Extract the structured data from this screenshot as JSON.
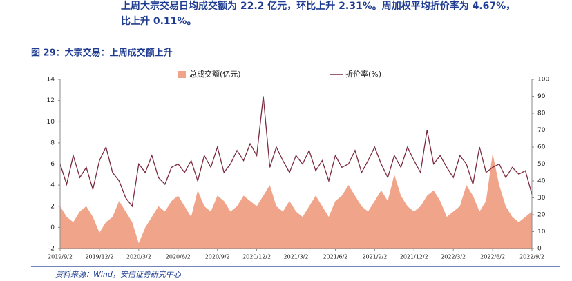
{
  "header_text": [
    "上周大宗交易日均成交额为 22.2 亿元，环比上升 2.31%。周加权平均折价率为 4.67%，",
    "比上升 0.11%。"
  ],
  "chart_data": {
    "type": "area-line",
    "title": "图 29：大宗交易：上周成交额上升",
    "source": "资料来源：Wind，安信证券研究中心",
    "categories": [
      "2019/9/2",
      null,
      null,
      null,
      null,
      null,
      "2019/12/2",
      null,
      null,
      null,
      null,
      null,
      "2020/3/2",
      null,
      null,
      null,
      null,
      null,
      "2020/6/2",
      null,
      null,
      null,
      null,
      null,
      "2020/9/2",
      null,
      null,
      null,
      null,
      null,
      "2020/12/2",
      null,
      null,
      null,
      null,
      null,
      "2021/3/2",
      null,
      null,
      null,
      null,
      null,
      "2021/6/2",
      null,
      null,
      null,
      null,
      null,
      "2021/9/2",
      null,
      null,
      null,
      null,
      null,
      "2021/12/2",
      null,
      null,
      null,
      null,
      null,
      "2022/3/2",
      null,
      null,
      null,
      null,
      null,
      "2022/6/2",
      null,
      null,
      null,
      null,
      null,
      "2022/9/2"
    ],
    "series": [
      {
        "name": "总成交额(亿元)",
        "color": "#f0a48a",
        "kind": "area",
        "values": [
          2,
          1,
          0.5,
          1.5,
          2,
          1,
          -0.5,
          0.5,
          1,
          2.5,
          1.5,
          0.5,
          -1.5,
          0,
          1,
          2,
          1.5,
          2.5,
          3,
          2,
          1,
          3.5,
          2,
          1.5,
          3,
          2.5,
          1.5,
          2,
          3,
          2.5,
          2,
          3,
          4,
          2,
          1.5,
          2.5,
          1.5,
          1,
          2,
          3,
          2,
          1,
          2.5,
          3,
          4,
          3,
          2,
          1.5,
          2.5,
          3.5,
          2.5,
          5,
          3,
          2,
          1.5,
          2,
          3,
          3.5,
          2.5,
          1,
          1.5,
          2,
          4,
          3,
          1.5,
          2.5,
          7,
          4,
          2,
          1,
          0.5,
          1,
          1.5
        ]
      },
      {
        "name": "折价率(%)",
        "color": "#7b2a3f",
        "kind": "line",
        "axis": "y2",
        "values": [
          50,
          38,
          55,
          42,
          48,
          35,
          52,
          60,
          45,
          40,
          30,
          25,
          50,
          45,
          55,
          42,
          38,
          48,
          50,
          45,
          52,
          40,
          55,
          48,
          60,
          45,
          50,
          58,
          52,
          62,
          55,
          90,
          48,
          60,
          52,
          45,
          55,
          50,
          58,
          46,
          52,
          40,
          55,
          48,
          50,
          58,
          45,
          52,
          60,
          50,
          42,
          55,
          48,
          60,
          52,
          45,
          70,
          50,
          55,
          48,
          42,
          55,
          50,
          38,
          60,
          45,
          48,
          50,
          42,
          48,
          44,
          46,
          32
        ]
      }
    ],
    "ylim": [
      -2,
      14
    ],
    "yticks": [
      -2,
      0,
      2,
      4,
      6,
      8,
      10,
      12,
      14
    ],
    "y2lim": [
      0,
      100
    ],
    "y2ticks": [
      0,
      10,
      20,
      30,
      40,
      50,
      60,
      70,
      80,
      90,
      100
    ]
  }
}
